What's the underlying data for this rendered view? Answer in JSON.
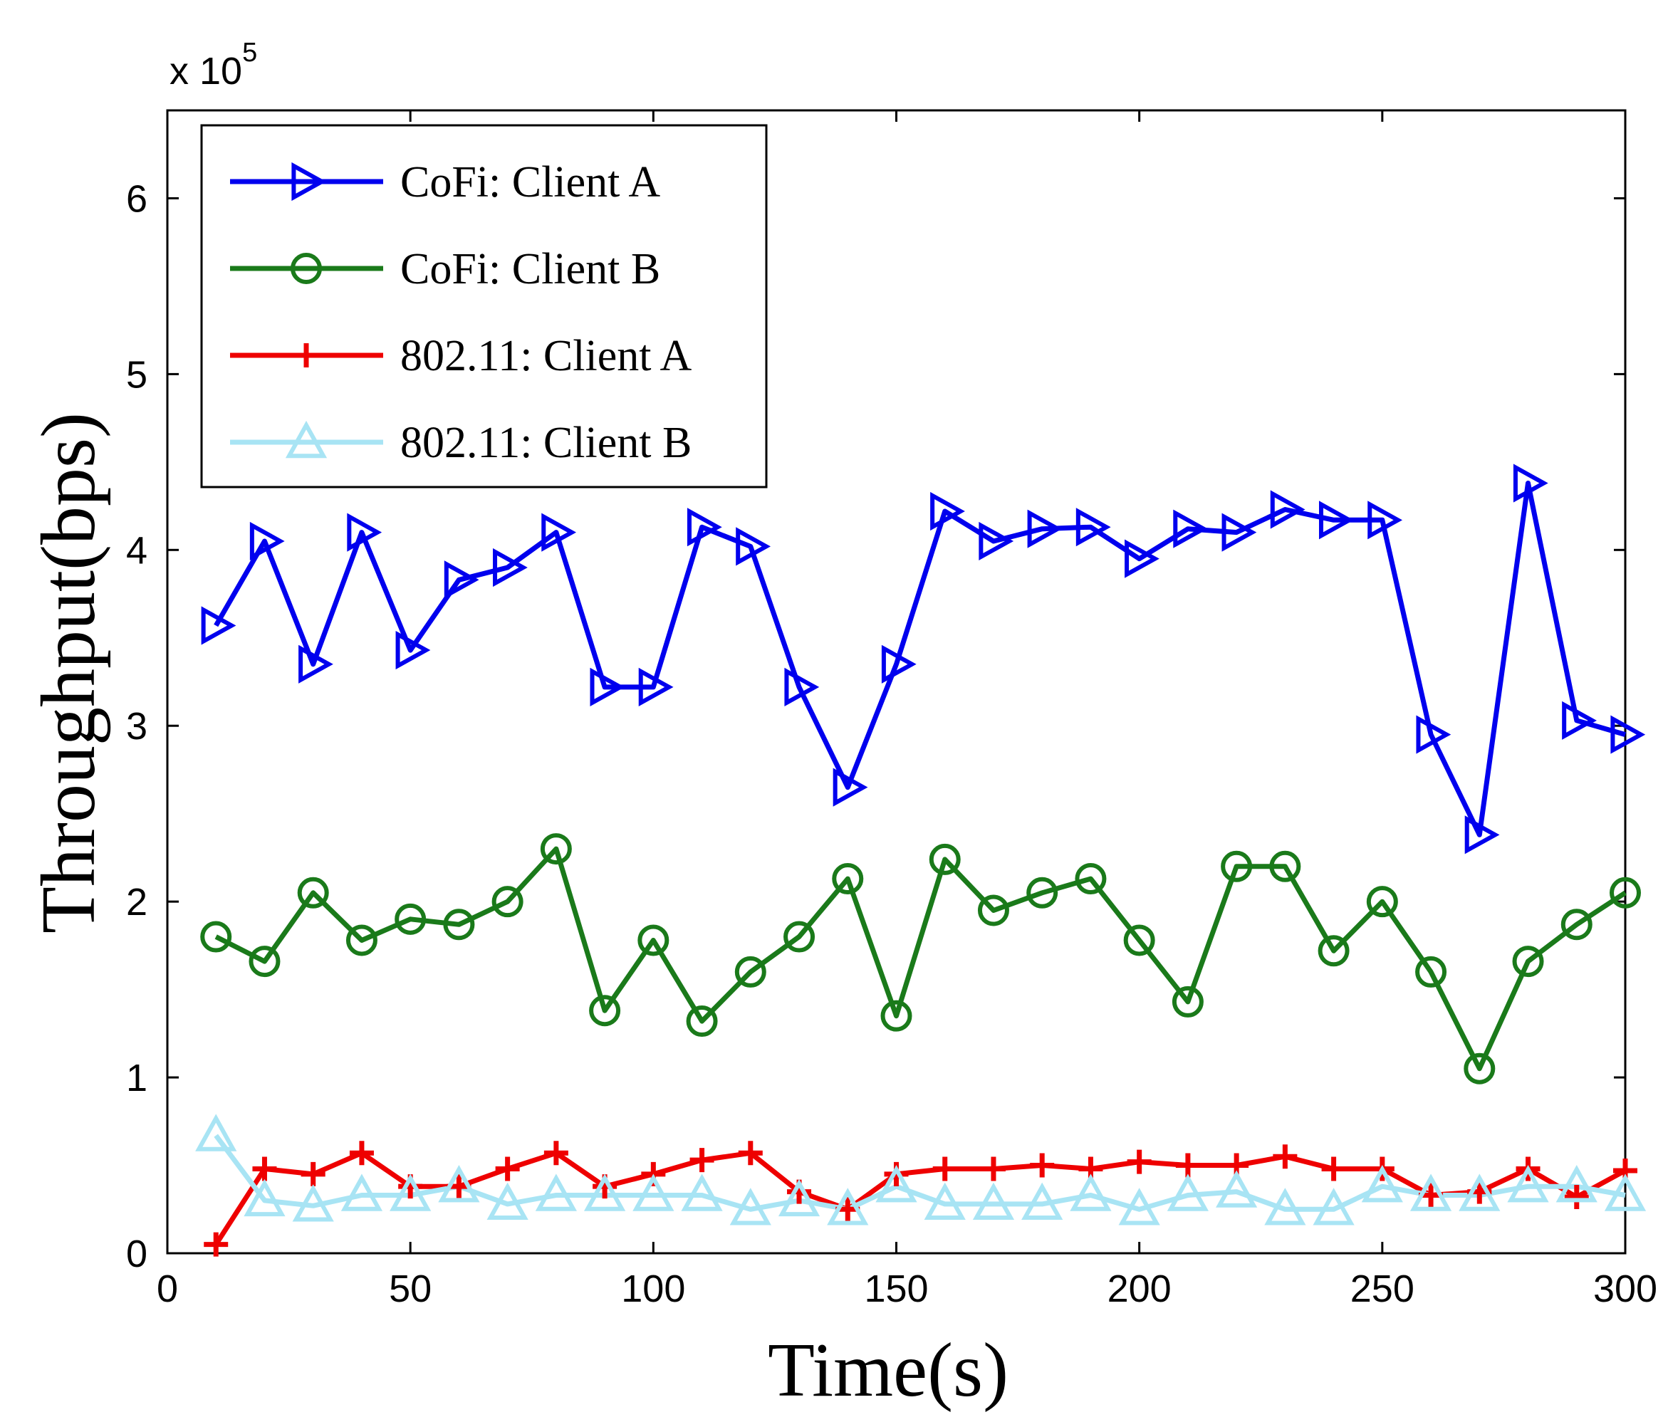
{
  "chart_data": {
    "type": "line",
    "xlabel": "Time(s)",
    "ylabel": "Throughput(bps)",
    "y_multiplier_prefix": "x 10",
    "y_multiplier_exponent": "5",
    "xlim": [
      0,
      300
    ],
    "ylim": [
      0,
      6.5
    ],
    "xticks": [
      0,
      50,
      100,
      150,
      200,
      250,
      300
    ],
    "yticks": [
      0,
      1,
      2,
      3,
      4,
      5,
      6
    ],
    "grid": false,
    "legend_position": "top-left",
    "x": [
      10,
      20,
      30,
      40,
      50,
      60,
      70,
      80,
      90,
      100,
      110,
      120,
      130,
      140,
      150,
      160,
      170,
      180,
      190,
      200,
      210,
      220,
      230,
      240,
      250,
      260,
      270,
      280,
      290,
      300
    ],
    "series": [
      {
        "name": "CoFi: Client A",
        "color": "#0000ee",
        "marker": "triangle-right",
        "values": [
          3.57,
          4.05,
          3.35,
          4.1,
          3.43,
          3.83,
          3.9,
          4.1,
          3.22,
          3.22,
          4.13,
          4.02,
          3.22,
          2.65,
          3.35,
          4.22,
          4.05,
          4.12,
          4.13,
          3.95,
          4.12,
          4.1,
          4.23,
          4.17,
          4.17,
          2.95,
          2.38,
          4.38,
          3.03,
          2.95
        ]
      },
      {
        "name": "CoFi: Client B",
        "color": "#1a7a1a",
        "marker": "circle",
        "values": [
          1.8,
          1.66,
          2.05,
          1.78,
          1.9,
          1.87,
          2.0,
          2.3,
          1.38,
          1.78,
          1.32,
          1.6,
          1.8,
          2.13,
          1.35,
          2.24,
          1.95,
          2.05,
          2.13,
          1.78,
          1.43,
          2.2,
          2.2,
          1.72,
          2.0,
          1.6,
          1.05,
          1.66,
          1.87,
          2.05
        ]
      },
      {
        "name": "802.11: Client A",
        "color": "#ee0000",
        "marker": "plus",
        "values": [
          0.05,
          0.48,
          0.45,
          0.57,
          0.38,
          0.38,
          0.48,
          0.57,
          0.38,
          0.45,
          0.53,
          0.57,
          0.35,
          0.25,
          0.45,
          0.48,
          0.48,
          0.5,
          0.48,
          0.52,
          0.5,
          0.5,
          0.55,
          0.48,
          0.48,
          0.33,
          0.35,
          0.48,
          0.32,
          0.47
        ]
      },
      {
        "name": "802.11: Client B",
        "color": "#a8e4f4",
        "marker": "triangle-up",
        "values": [
          0.67,
          0.3,
          0.27,
          0.33,
          0.33,
          0.38,
          0.28,
          0.33,
          0.33,
          0.33,
          0.33,
          0.25,
          0.3,
          0.25,
          0.38,
          0.28,
          0.28,
          0.28,
          0.33,
          0.25,
          0.33,
          0.35,
          0.25,
          0.25,
          0.38,
          0.33,
          0.33,
          0.38,
          0.38,
          0.33
        ]
      }
    ]
  }
}
